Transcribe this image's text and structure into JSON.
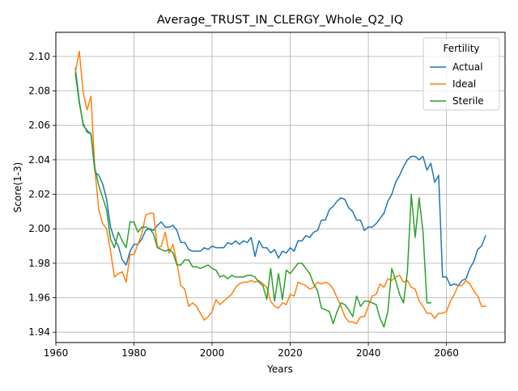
{
  "chart_data": {
    "type": "line",
    "title": "Average_TRUST_IN_CLERGY_Whole_Q2_IQ",
    "xlabel": "Years",
    "ylabel": "Score(1-3)",
    "xlim": [
      1960,
      2075
    ],
    "ylim": [
      1.934,
      2.114
    ],
    "xticks": [
      1960,
      1980,
      2000,
      2020,
      2040,
      2060
    ],
    "yticks": [
      1.94,
      1.96,
      1.98,
      2.0,
      2.02,
      2.04,
      2.06,
      2.08,
      2.1
    ],
    "ytick_labels": [
      "1.94",
      "1.96",
      "1.98",
      "2.00",
      "2.02",
      "2.04",
      "2.06",
      "2.08",
      "2.10"
    ],
    "grid": true,
    "legend": {
      "title": "Fertility",
      "placement": "top-right"
    },
    "series": [
      {
        "name": "Actual",
        "color": "#1f77b4",
        "x": [
          1965,
          1966,
          1967,
          1968,
          1969,
          1970,
          1971,
          1972,
          1973,
          1974,
          1975,
          1976,
          1977,
          1978,
          1979,
          1980,
          1981,
          1982,
          1983,
          1984,
          1985,
          1986,
          1987,
          1988,
          1989,
          1990,
          1991,
          1992,
          1993,
          1994,
          1995,
          1996,
          1997,
          1998,
          1999,
          2000,
          2001,
          2002,
          2003,
          2004,
          2005,
          2006,
          2007,
          2008,
          2009,
          2010,
          2011,
          2012,
          2013,
          2014,
          2015,
          2016,
          2017,
          2018,
          2019,
          2020,
          2021,
          2022,
          2023,
          2024,
          2025,
          2026,
          2027,
          2028,
          2029,
          2030,
          2031,
          2032,
          2033,
          2034,
          2035,
          2036,
          2037,
          2038,
          2039,
          2040,
          2041,
          2042,
          2043,
          2044,
          2045,
          2046,
          2047,
          2048,
          2049,
          2050,
          2051,
          2052,
          2053,
          2054,
          2055,
          2056,
          2057,
          2058,
          2059,
          2060,
          2061,
          2062,
          2063,
          2064,
          2065,
          2066,
          2067,
          2068,
          2069,
          2070
        ],
        "y": [
          2.093,
          2.074,
          2.06,
          2.057,
          2.055,
          2.033,
          2.031,
          2.026,
          2.017,
          2.001,
          1.994,
          1.99,
          1.982,
          1.979,
          1.987,
          1.991,
          1.991,
          1.994,
          1.999,
          2.0,
          1.999,
          2.002,
          2.004,
          2.001,
          2.001,
          2.002,
          1.999,
          1.992,
          1.992,
          1.988,
          1.987,
          1.987,
          1.987,
          1.989,
          1.988,
          1.99,
          1.989,
          1.989,
          1.989,
          1.992,
          1.991,
          1.993,
          1.991,
          1.993,
          1.992,
          1.995,
          1.984,
          1.993,
          1.989,
          1.989,
          1.986,
          1.988,
          1.983,
          1.987,
          1.986,
          1.989,
          1.987,
          1.993,
          1.993,
          1.996,
          1.995,
          1.998,
          1.999,
          2.005,
          2.005,
          2.011,
          2.013,
          2.016,
          2.018,
          2.017,
          2.012,
          2.01,
          2.005,
          2.005,
          1.999,
          2.001,
          2.001,
          2.003,
          2.006,
          2.009,
          2.016,
          2.02,
          2.027,
          2.031,
          2.036,
          2.04,
          2.042,
          2.042,
          2.04,
          2.042,
          2.034,
          2.038,
          2.027,
          2.031,
          1.972,
          1.972,
          1.967,
          1.968,
          1.967,
          1.97,
          1.971,
          1.977,
          1.981,
          1.988,
          1.99,
          1.996
        ]
      },
      {
        "name": "Ideal",
        "color": "#ff7f0e",
        "x": [
          1965,
          1966,
          1967,
          1968,
          1969,
          1970,
          1971,
          1972,
          1973,
          1974,
          1975,
          1976,
          1977,
          1978,
          1979,
          1980,
          1981,
          1982,
          1983,
          1984,
          1985,
          1986,
          1987,
          1988,
          1989,
          1990,
          1991,
          1992,
          1993,
          1994,
          1995,
          1996,
          1997,
          1998,
          1999,
          2000,
          2001,
          2002,
          2003,
          2004,
          2005,
          2006,
          2007,
          2008,
          2009,
          2010,
          2011,
          2012,
          2013,
          2014,
          2015,
          2016,
          2017,
          2018,
          2019,
          2020,
          2021,
          2022,
          2023,
          2024,
          2025,
          2026,
          2027,
          2028,
          2029,
          2030,
          2031,
          2032,
          2033,
          2034,
          2035,
          2036,
          2037,
          2038,
          2039,
          2040,
          2041,
          2042,
          2043,
          2044,
          2045,
          2046,
          2047,
          2048,
          2049,
          2050,
          2051,
          2052,
          2053,
          2054,
          2055,
          2056,
          2057,
          2058,
          2059,
          2060,
          2061,
          2062,
          2063,
          2064,
          2065,
          2066,
          2067,
          2068,
          2069,
          2070
        ],
        "y": [
          2.091,
          2.103,
          2.079,
          2.069,
          2.077,
          2.034,
          2.011,
          2.003,
          2.0,
          1.987,
          1.972,
          1.974,
          1.975,
          1.969,
          1.985,
          1.985,
          1.991,
          1.997,
          2.008,
          2.009,
          2.009,
          1.989,
          1.99,
          1.998,
          1.986,
          1.991,
          1.98,
          1.967,
          1.965,
          1.955,
          1.957,
          1.955,
          1.951,
          1.947,
          1.949,
          1.952,
          1.959,
          1.956,
          1.958,
          1.96,
          1.962,
          1.966,
          1.968,
          1.969,
          1.969,
          1.97,
          1.969,
          1.97,
          1.968,
          1.966,
          1.958,
          1.955,
          1.954,
          1.957,
          1.956,
          1.962,
          1.961,
          1.969,
          1.968,
          1.967,
          1.965,
          1.966,
          1.969,
          1.968,
          1.969,
          1.968,
          1.965,
          1.96,
          1.955,
          1.949,
          1.946,
          1.946,
          1.945,
          1.949,
          1.949,
          1.955,
          1.961,
          1.962,
          1.968,
          1.966,
          1.971,
          1.97,
          1.972,
          1.973,
          1.969,
          1.97,
          1.966,
          1.965,
          1.958,
          1.955,
          1.951,
          1.951,
          1.948,
          1.951,
          1.951,
          1.952,
          1.958,
          1.962,
          1.967,
          1.967,
          1.97,
          1.968,
          1.964,
          1.961,
          1.955,
          1.955
        ]
      },
      {
        "name": "Sterile",
        "color": "#2ca02c",
        "x": [
          1965,
          1966,
          1967,
          1968,
          1969,
          1970,
          1971,
          1972,
          1973,
          1974,
          1975,
          1976,
          1977,
          1978,
          1979,
          1980,
          1981,
          1982,
          1983,
          1984,
          1985,
          1986,
          1987,
          1988,
          1989,
          1990,
          1991,
          1992,
          1993,
          1994,
          1995,
          1996,
          1997,
          1998,
          1999,
          2000,
          2001,
          2002,
          2003,
          2004,
          2005,
          2006,
          2007,
          2008,
          2009,
          2010,
          2011,
          2012,
          2013,
          2014,
          2015,
          2016,
          2017,
          2018,
          2019,
          2020,
          2021,
          2022,
          2023,
          2024,
          2025,
          2026,
          2027,
          2028,
          2029,
          2030,
          2031,
          2032,
          2033,
          2034,
          2035,
          2036,
          2037,
          2038,
          2039,
          2040,
          2041,
          2042,
          2043,
          2044,
          2045,
          2046,
          2047,
          2048,
          2049,
          2050,
          2051,
          2052,
          2053,
          2054,
          2055,
          2056
        ],
        "y": [
          2.09,
          2.073,
          2.061,
          2.056,
          2.055,
          2.035,
          2.025,
          2.018,
          2.011,
          1.994,
          1.989,
          1.998,
          1.993,
          1.989,
          2.004,
          2.004,
          1.998,
          2.001,
          2.001,
          2.0,
          1.997,
          1.989,
          1.988,
          1.987,
          1.988,
          1.986,
          1.979,
          1.979,
          1.982,
          1.982,
          1.978,
          1.978,
          1.977,
          1.978,
          1.979,
          1.977,
          1.976,
          1.972,
          1.973,
          1.971,
          1.973,
          1.972,
          1.972,
          1.972,
          1.973,
          1.973,
          1.972,
          1.969,
          1.967,
          1.959,
          1.977,
          1.958,
          1.974,
          1.959,
          1.976,
          1.974,
          1.977,
          1.98,
          1.98,
          1.977,
          1.974,
          1.968,
          1.964,
          1.954,
          1.953,
          1.952,
          1.945,
          1.952,
          1.957,
          1.956,
          1.953,
          1.949,
          1.961,
          1.955,
          1.958,
          1.958,
          1.957,
          1.956,
          1.948,
          1.943,
          1.952,
          1.977,
          1.97,
          1.962,
          1.957,
          1.975,
          2.02,
          1.995,
          2.018,
          1.998,
          1.957,
          1.957
        ]
      }
    ]
  }
}
